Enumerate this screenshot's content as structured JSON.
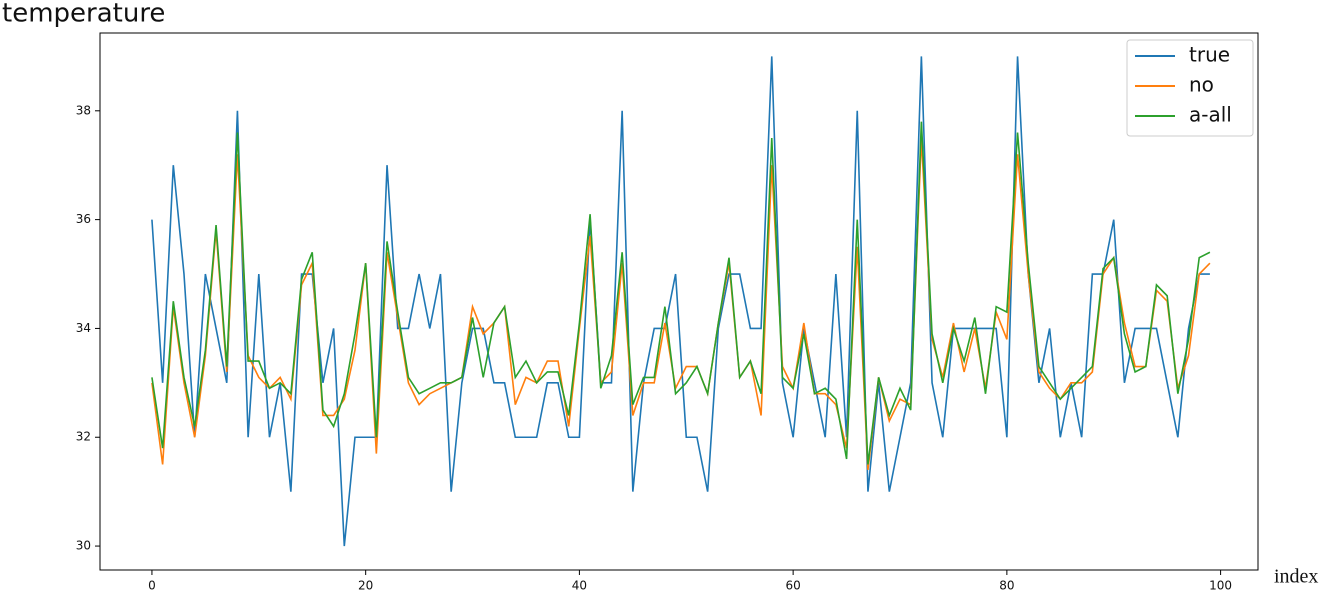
{
  "chart_data": {
    "type": "line",
    "y_label": "temperature",
    "x_label": "index",
    "x": [
      0,
      1,
      2,
      3,
      4,
      5,
      6,
      7,
      8,
      9,
      10,
      11,
      12,
      13,
      14,
      15,
      16,
      17,
      18,
      19,
      20,
      21,
      22,
      23,
      24,
      25,
      26,
      27,
      28,
      29,
      30,
      31,
      32,
      33,
      34,
      35,
      36,
      37,
      38,
      39,
      40,
      41,
      42,
      43,
      44,
      45,
      46,
      47,
      48,
      49,
      50,
      51,
      52,
      53,
      54,
      55,
      56,
      57,
      58,
      59,
      60,
      61,
      62,
      63,
      64,
      65,
      66,
      67,
      68,
      69,
      70,
      71,
      72,
      73,
      74,
      75,
      76,
      77,
      78,
      79,
      80,
      81,
      82,
      83,
      84,
      85,
      86,
      87,
      88,
      89,
      90,
      91,
      92,
      93,
      94,
      95,
      96,
      97,
      98,
      99
    ],
    "series": [
      {
        "name": "true",
        "color": "#1f77b4",
        "values": [
          36,
          33,
          37,
          35,
          32,
          35,
          34,
          33,
          38,
          32,
          35,
          32,
          33,
          31,
          35,
          35,
          33,
          34,
          30,
          32,
          32,
          32,
          37,
          34,
          34,
          35,
          34,
          35,
          31,
          33,
          34,
          34,
          33,
          33,
          32,
          32,
          32,
          33,
          33,
          32,
          32,
          36,
          33,
          33,
          38,
          31,
          33,
          34,
          34,
          35,
          32,
          32,
          31,
          34,
          35,
          35,
          34,
          34,
          39,
          33,
          32,
          34,
          33,
          32,
          35,
          32,
          38,
          31,
          33,
          31,
          32,
          33,
          39,
          33,
          32,
          34,
          34,
          34,
          34,
          34,
          32,
          39,
          35,
          33,
          34,
          32,
          33,
          32,
          35,
          35,
          36,
          33,
          34,
          34,
          34,
          33,
          32,
          34,
          35,
          35
        ]
      },
      {
        "name": "no",
        "color": "#ff7f0e",
        "values": [
          33,
          31.5,
          34.4,
          33,
          32,
          33.5,
          35.8,
          33.2,
          37.2,
          33.5,
          33.1,
          32.9,
          33.1,
          32.7,
          34.8,
          35.2,
          32.4,
          32.4,
          32.7,
          33.6,
          35.2,
          31.7,
          35.4,
          34.2,
          33,
          32.6,
          32.8,
          32.9,
          33,
          33.1,
          34.4,
          33.9,
          34.1,
          34.4,
          32.6,
          33.1,
          33,
          33.4,
          33.4,
          32.2,
          34,
          35.7,
          33,
          33.2,
          35.2,
          32.4,
          33,
          33,
          34.1,
          32.9,
          33.3,
          33.3,
          32.8,
          34.1,
          35.2,
          33.1,
          33.4,
          32.4,
          37,
          33.3,
          32.9,
          34.1,
          32.8,
          32.8,
          32.6,
          31.8,
          35.5,
          31.4,
          33.1,
          32.3,
          32.7,
          32.6,
          37.5,
          33.8,
          33.1,
          34.1,
          33.2,
          34,
          32.9,
          34.3,
          33.8,
          37.2,
          35,
          33.2,
          32.9,
          32.7,
          33,
          33,
          33.2,
          35,
          35.3,
          34.1,
          33.3,
          33.3,
          34.7,
          34.5,
          32.9,
          33.5,
          35,
          35.2
        ]
      },
      {
        "name": "a-all",
        "color": "#2ca02c",
        "values": [
          33.1,
          31.8,
          34.5,
          33.1,
          32.2,
          33.6,
          35.9,
          33.3,
          37.6,
          33.4,
          33.4,
          32.9,
          33,
          32.8,
          34.9,
          35.4,
          32.5,
          32.2,
          32.8,
          33.9,
          35.2,
          32,
          35.6,
          34.3,
          33.1,
          32.8,
          32.9,
          33,
          33,
          33.1,
          34.2,
          33.1,
          34.1,
          34.4,
          33.1,
          33.4,
          33,
          33.2,
          33.2,
          32.4,
          34.1,
          36.1,
          32.9,
          33.5,
          35.4,
          32.6,
          33.1,
          33.1,
          34.4,
          32.8,
          33,
          33.3,
          32.8,
          34.1,
          35.3,
          33.1,
          33.4,
          32.8,
          37.5,
          33.1,
          32.9,
          33.9,
          32.8,
          32.9,
          32.7,
          31.6,
          36,
          31.5,
          33.1,
          32.4,
          32.9,
          32.5,
          37.8,
          33.9,
          33,
          34,
          33.4,
          34.2,
          32.8,
          34.4,
          34.3,
          37.6,
          35.2,
          33.3,
          33,
          32.7,
          32.9,
          33.1,
          33.3,
          35.1,
          35.3,
          33.9,
          33.2,
          33.3,
          34.8,
          34.6,
          32.8,
          33.8,
          35.3,
          35.4
        ]
      }
    ],
    "xlim": [
      -4.86,
      103.5
    ],
    "ylim": [
      29.56,
      39.43
    ],
    "xticks": [
      0,
      20,
      40,
      60,
      80,
      100
    ],
    "yticks": [
      30,
      32,
      34,
      36,
      38
    ],
    "legend": "upper right"
  }
}
